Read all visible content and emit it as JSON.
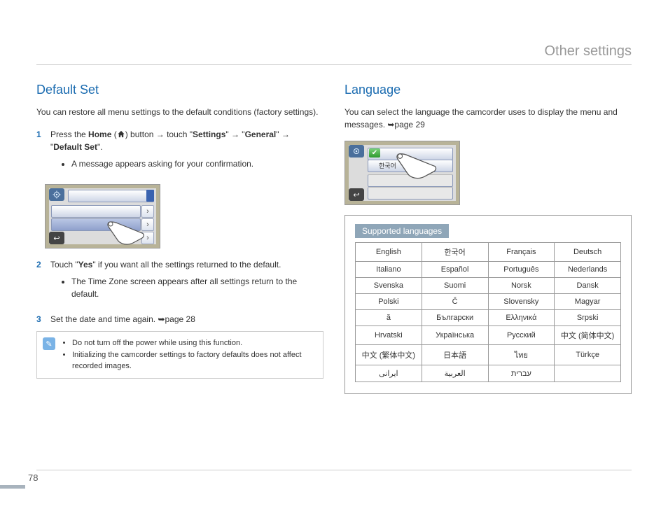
{
  "page": {
    "title": "Other settings",
    "number": "78"
  },
  "left": {
    "heading": "Default Set",
    "intro": "You can restore all menu settings to the default conditions (factory settings).",
    "step1_pre": "Press the ",
    "step1_home": "Home",
    "step1_mid1": " (",
    "step1_mid2": ") button → touch \"",
    "step1_settings": "Settings",
    "step1_mid3": "\" → \"",
    "step1_general": "General",
    "step1_mid4": "\" → \"",
    "step1_default": "Default Set",
    "step1_end": "\".",
    "step1_bullet": "A message appears asking for your confirmation.",
    "step2_pre": "Touch \"",
    "step2_yes": "Yes",
    "step2_post": "\" if you want all the settings returned to the default.",
    "step2_bullet": "The Time Zone screen appears after all settings return to the default.",
    "step3_text": "Set the date and time again. ",
    "step3_ref": "➥page 28",
    "note1": "Do not turn off the power while using this function.",
    "note2": "Initializing the camcorder settings to factory defaults does not affect recorded images."
  },
  "right": {
    "heading": "Language",
    "intro_pre": "You can select the language the camcorder uses to display the menu and messages. ",
    "intro_ref": "➥page 29",
    "selected_lang": "한국어",
    "supported_label": "Supported languages",
    "langs": [
      [
        "English",
        "한국어",
        "Français",
        "Deutsch"
      ],
      [
        "Italiano",
        "Español",
        "Português",
        "Nederlands"
      ],
      [
        "Svenska",
        "Suomi",
        "Norsk",
        "Dansk"
      ],
      [
        "Polski",
        "Č",
        "Slovensky",
        "Magyar"
      ],
      [
        "ă",
        "Български",
        "Ελληνικά",
        "Srpski"
      ],
      [
        "Hrvatski",
        "Українська",
        "Русский",
        "中文 (简体中文)"
      ],
      [
        "中文 (繁体中文)",
        "日本語",
        "ไทย",
        "Türkçe"
      ],
      [
        "ایرانی",
        "العربية",
        "עברית",
        ""
      ]
    ]
  }
}
